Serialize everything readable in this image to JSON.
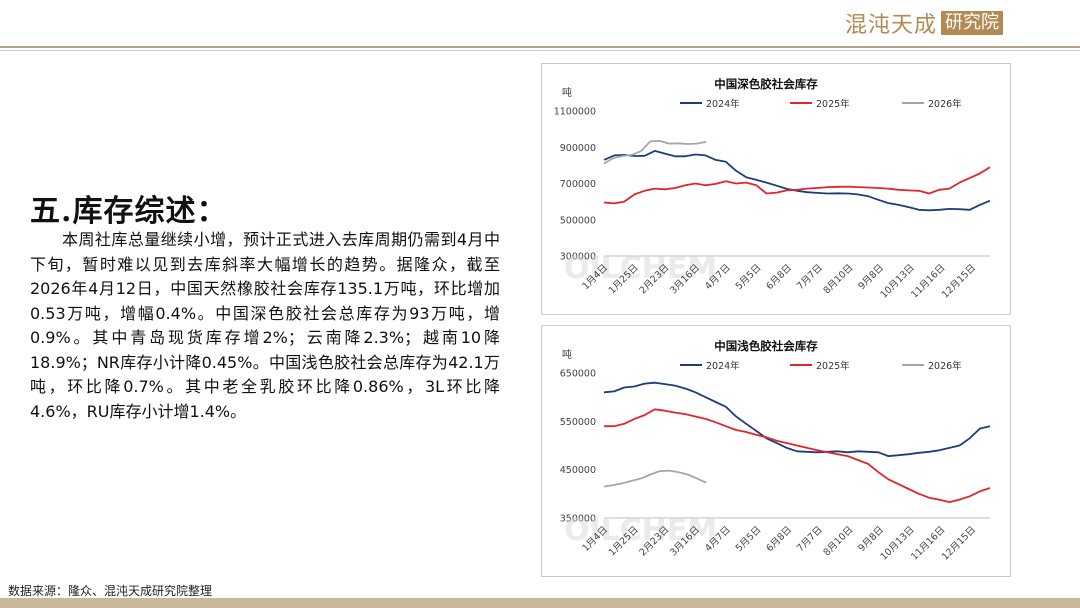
{
  "brand": {
    "logo_text": "混沌天成",
    "box_text": "研究院"
  },
  "section": {
    "title": "五.库存综述：",
    "paragraph": "本周社库总量继续小增，预计正式进入去库周期仍需到4月中下旬，暂时难以见到去库斜率大幅增长的趋势。据隆众，截至2026年4月12日，中国天然橡胶社会库存135.1万吨，环比增加0.53万吨，增幅0.4%。中国深色胶社会总库存为93万吨，增0.9%。其中青岛现货库存增2%；云南降2.3%；越南10降18.9%；NR库存小计降0.45%。中国浅色胶社会总库存为42.1万吨，环比降0.7%。其中老全乳胶环比降0.86%，3L环比降4.6%，RU库存小计增1.4%。"
  },
  "source": "数据来源：隆众、混沌天成研究院整理",
  "colors": {
    "s2024": "#1f3d7a",
    "s2025": "#e0262a",
    "s2026": "#a6a6a6"
  },
  "chart_data": [
    {
      "type": "line",
      "title": "中国深色胶社会库存",
      "ylabel": "吨",
      "ylim": [
        300000,
        1100000
      ],
      "yticks": [
        "300000",
        "500000",
        "700000",
        "900000",
        "1100000"
      ],
      "xticks": [
        "1月4日",
        "1月25日",
        "2月23日",
        "3月16日",
        "4月7日",
        "5月5日",
        "6月8日",
        "7月7日",
        "8月10日",
        "9月8日",
        "10月13日",
        "11月16日",
        "12月15日"
      ],
      "watermark": "OILCHEM",
      "series": [
        {
          "name": "2024年",
          "color": "#1f3d7a",
          "values": [
            830000,
            855000,
            858000,
            852000,
            853000,
            880000,
            865000,
            850000,
            850000,
            860000,
            855000,
            830000,
            820000,
            770000,
            735000,
            720000,
            705000,
            688000,
            670000,
            660000,
            652000,
            648000,
            645000,
            646000,
            645000,
            640000,
            630000,
            610000,
            592000,
            582000,
            570000,
            555000,
            552000,
            555000,
            560000,
            558000,
            555000,
            582000,
            605000
          ]
        },
        {
          "name": "2025年",
          "color": "#e0262a",
          "values": [
            595000,
            590000,
            600000,
            640000,
            660000,
            672000,
            668000,
            675000,
            690000,
            700000,
            690000,
            698000,
            712000,
            700000,
            705000,
            690000,
            645000,
            650000,
            662000,
            665000,
            672000,
            675000,
            680000,
            682000,
            683000,
            680000,
            678000,
            675000,
            672000,
            665000,
            662000,
            660000,
            645000,
            665000,
            672000,
            705000,
            730000,
            755000,
            790000
          ]
        },
        {
          "name": "2026年",
          "color": "#a6a6a6",
          "values": [
            810000,
            840000,
            852000,
            858000,
            880000,
            932000,
            935000,
            920000,
            922000,
            918000,
            920000,
            930000
          ]
        }
      ]
    },
    {
      "type": "line",
      "title": "中国浅色胶社会库存",
      "ylabel": "吨",
      "ylim": [
        350000,
        650000
      ],
      "yticks": [
        "350000",
        "450000",
        "550000",
        "650000"
      ],
      "xticks": [
        "1月4日",
        "1月25日",
        "2月23日",
        "3月16日",
        "4月7日",
        "5月5日",
        "6月8日",
        "7月7日",
        "8月10日",
        "9月8日",
        "10月13日",
        "11月16日",
        "12月15日"
      ],
      "watermark": "OILCHEM",
      "series": [
        {
          "name": "2024年",
          "color": "#1f3d7a",
          "values": [
            610000,
            612000,
            620000,
            622000,
            628000,
            630000,
            627000,
            624000,
            618000,
            610000,
            600000,
            590000,
            580000,
            560000,
            545000,
            530000,
            515000,
            505000,
            495000,
            488000,
            487000,
            486000,
            487000,
            488000,
            486000,
            488000,
            487000,
            486000,
            478000,
            480000,
            482000,
            485000,
            487000,
            490000,
            495000,
            500000,
            515000,
            535000,
            540000
          ]
        },
        {
          "name": "2025年",
          "color": "#e0262a",
          "values": [
            540000,
            540000,
            545000,
            555000,
            563000,
            575000,
            572000,
            568000,
            565000,
            560000,
            555000,
            548000,
            540000,
            532000,
            528000,
            522000,
            517000,
            510000,
            505000,
            500000,
            495000,
            490000,
            486000,
            482000,
            478000,
            470000,
            462000,
            445000,
            430000,
            420000,
            410000,
            400000,
            392000,
            388000,
            383000,
            388000,
            395000,
            405000,
            412000
          ]
        },
        {
          "name": "2026年",
          "color": "#a6a6a6",
          "values": [
            415000,
            418000,
            422000,
            427000,
            432000,
            440000,
            447000,
            448000,
            445000,
            440000,
            432000,
            423000
          ]
        }
      ]
    }
  ]
}
